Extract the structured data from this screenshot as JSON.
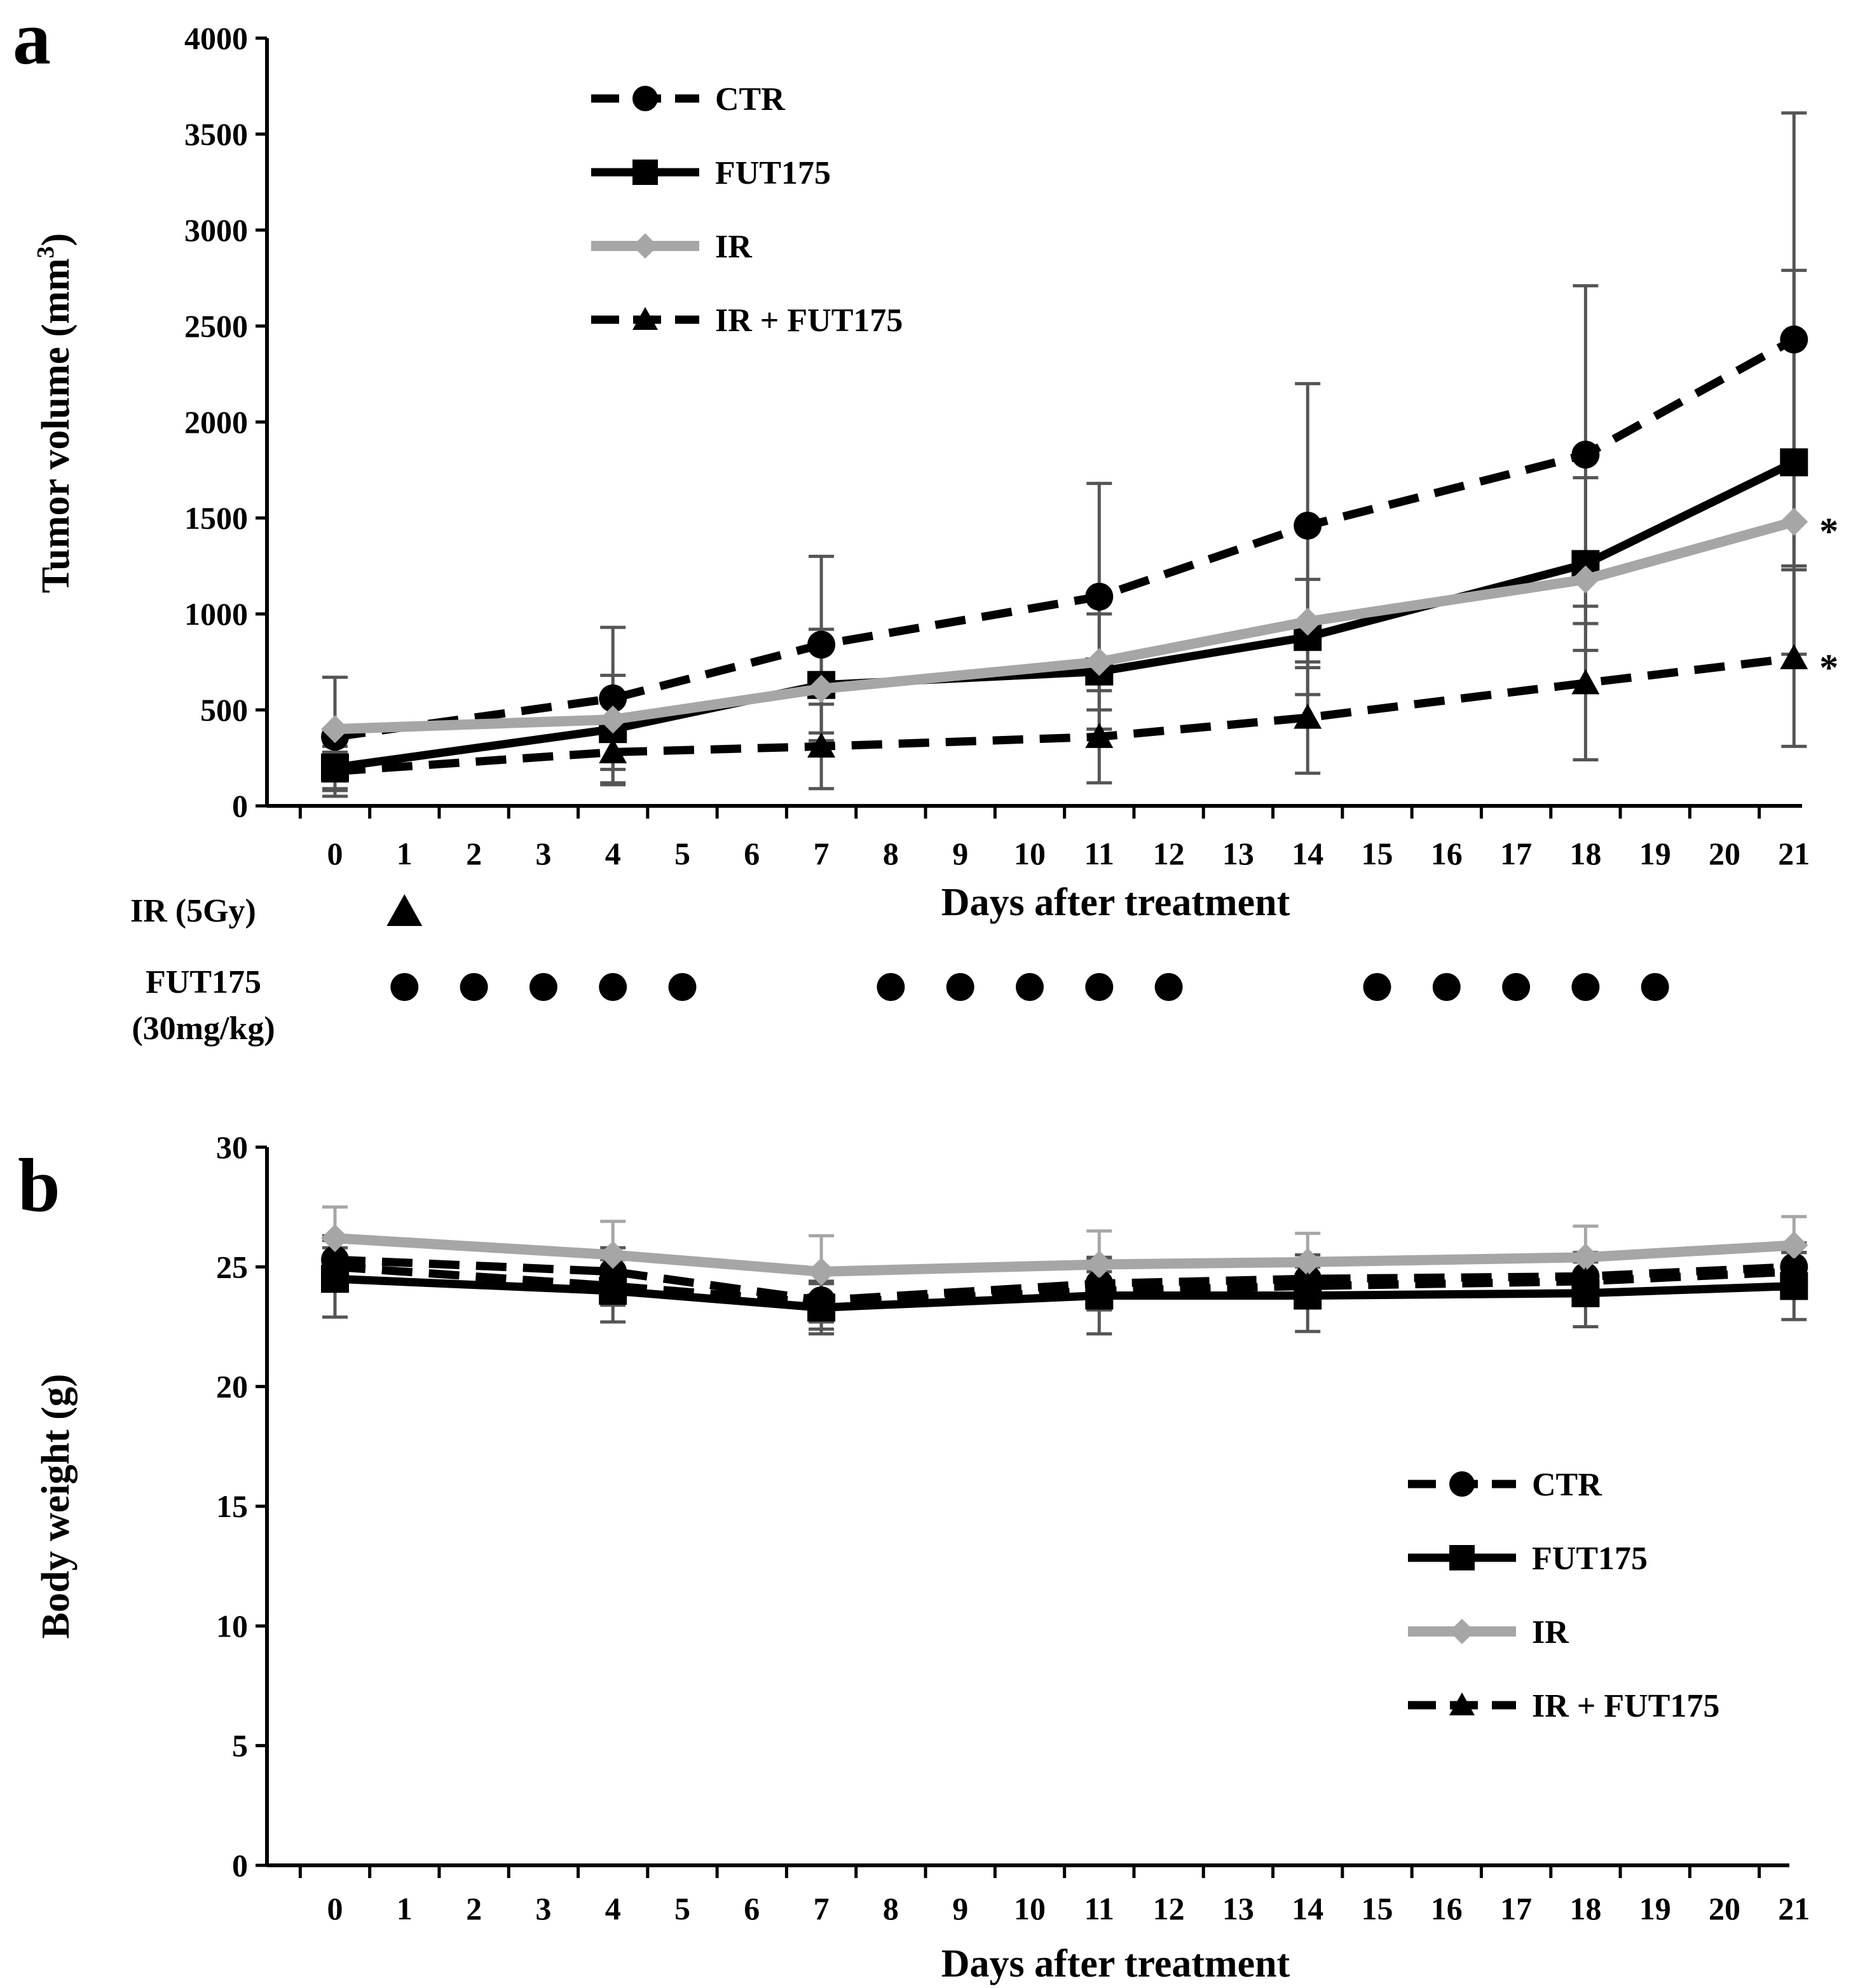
{
  "chart_data": [
    {
      "panel": "a",
      "type": "line",
      "xlabel": "Days after treatment",
      "ylabel": "Tumor volume (mm",
      "ylabel_sup": "3",
      "ylabel_end": ")",
      "x_ticks": [
        0,
        1,
        2,
        3,
        4,
        5,
        6,
        7,
        8,
        9,
        10,
        11,
        12,
        13,
        14,
        15,
        16,
        17,
        18,
        19,
        20,
        21
      ],
      "y_ticks": [
        0,
        500,
        1000,
        1500,
        2000,
        2500,
        3000,
        3500,
        4000
      ],
      "xlim": [
        -1,
        21.2
      ],
      "ylim": [
        0,
        4000
      ],
      "x": [
        0,
        4,
        7,
        11,
        14,
        18,
        21
      ],
      "series": [
        {
          "name": "CTR",
          "style": "dashed",
          "color": "#000000",
          "marker": "circle",
          "values": [
            360,
            560,
            840,
            1090,
            1460,
            1830,
            2430
          ],
          "errors": [
            310,
            370,
            460,
            590,
            740,
            880,
            1180
          ]
        },
        {
          "name": "FUT175",
          "style": "solid",
          "color": "#000000",
          "marker": "square",
          "values": [
            200,
            400,
            630,
            700,
            880,
            1260,
            1790
          ],
          "errors": [
            110,
            280,
            290,
            300,
            300,
            450,
            1000
          ]
        },
        {
          "name": "IR",
          "style": "solid",
          "color": "#a6a6a6",
          "marker": "diamond",
          "values": [
            400,
            450,
            610,
            750,
            960,
            1180,
            1480
          ],
          "errors": [
            0,
            0,
            0,
            0,
            0,
            0,
            0
          ]
        },
        {
          "name": "IR + FUT175",
          "style": "dashed",
          "color": "#000000",
          "marker": "triangle",
          "values": [
            180,
            280,
            310,
            360,
            460,
            640,
            770
          ],
          "errors": [
            100,
            170,
            220,
            240,
            290,
            400,
            460
          ]
        }
      ],
      "significance": [
        {
          "series": "IR",
          "label": "*"
        },
        {
          "series": "IR + FUT175",
          "label": "*"
        }
      ],
      "legend": [
        "CTR",
        "FUT175",
        "IR",
        "IR + FUT175"
      ],
      "legend_position": "top-left"
    },
    {
      "panel": "b",
      "type": "line",
      "xlabel": "Days after treatment",
      "ylabel": "Body weight (g)",
      "x_ticks": [
        0,
        1,
        2,
        3,
        4,
        5,
        6,
        7,
        8,
        9,
        10,
        11,
        12,
        13,
        14,
        15,
        16,
        17,
        18,
        19,
        20,
        21
      ],
      "y_ticks": [
        0,
        5,
        10,
        15,
        20,
        25,
        30
      ],
      "xlim": [
        -1,
        21.2
      ],
      "ylim": [
        0,
        30
      ],
      "x": [
        0,
        4,
        7,
        11,
        14,
        18,
        21
      ],
      "series": [
        {
          "name": "CTR",
          "style": "dashed",
          "color": "#000000",
          "marker": "circle",
          "values": [
            25.3,
            24.8,
            23.6,
            24.3,
            24.5,
            24.6,
            25.0
          ],
          "errors": [
            1.0,
            1.0,
            1.2,
            1.0,
            1.0,
            1.0,
            1.0
          ]
        },
        {
          "name": "FUT175",
          "style": "solid",
          "color": "#000000",
          "marker": "square",
          "values": [
            24.5,
            24.0,
            23.3,
            23.8,
            23.8,
            23.9,
            24.2
          ],
          "errors": [
            1.6,
            1.3,
            1.1,
            1.6,
            1.5,
            1.4,
            1.4
          ]
        },
        {
          "name": "IR",
          "style": "solid",
          "color": "#a6a6a6",
          "marker": "diamond",
          "values": [
            26.2,
            25.5,
            24.8,
            25.1,
            25.2,
            25.4,
            25.9
          ],
          "errors": [
            1.3,
            1.4,
            1.5,
            1.4,
            1.2,
            1.3,
            1.2
          ]
        },
        {
          "name": "IR + FUT175",
          "style": "dashed",
          "color": "#000000",
          "marker": "triangle",
          "values": [
            25.0,
            24.2,
            23.5,
            24.0,
            24.2,
            24.4,
            24.8
          ],
          "errors": [
            0.8,
            0.8,
            0.8,
            0.8,
            0.8,
            0.8,
            0.8
          ]
        }
      ],
      "legend": [
        "CTR",
        "FUT175",
        "IR",
        "IR + FUT175"
      ],
      "legend_position": "bottom-right"
    }
  ],
  "schedule": {
    "ir_label": "IR (5Gy)",
    "ir_days": [
      1
    ],
    "fut_label_line1": "FUT175",
    "fut_label_line2": "(30mg/kg)",
    "fut_days": [
      1,
      2,
      3,
      4,
      5,
      8,
      9,
      10,
      11,
      12,
      15,
      16,
      17,
      18,
      19
    ]
  }
}
